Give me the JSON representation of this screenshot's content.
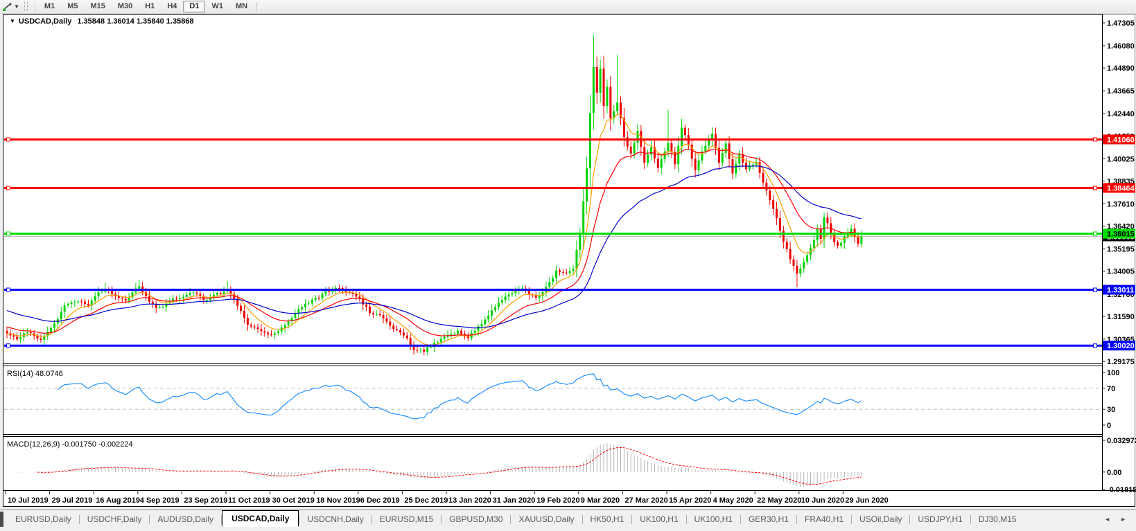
{
  "toolbar": {
    "timeframes": [
      "M1",
      "M5",
      "M15",
      "M30",
      "H1",
      "H4",
      "D1",
      "W1",
      "MN"
    ],
    "active_timeframe": "D1"
  },
  "chart": {
    "title": "USDCAD,Daily",
    "ohlc": "1.35848 1.36014 1.35840 1.35868",
    "background": "#ffffff",
    "bull_color": "#00d300",
    "bear_color": "#ee0000"
  },
  "indicators": {
    "rsi_label": "RSI(14) 48.0746",
    "macd_label": "MACD(12,26,9) -0.001750 -0.002224"
  },
  "axes": {
    "price_ticks": [
      "1.47305",
      "1.46080",
      "1.44890",
      "1.43665",
      "1.42440",
      "1.41250",
      "1.40025",
      "1.38835",
      "1.37610",
      "1.36420",
      "1.35195",
      "1.34005",
      "1.32780",
      "1.31590",
      "1.30365",
      "1.29175"
    ],
    "rsi_ticks": [
      "100",
      "70",
      "30",
      "0"
    ],
    "macd_ticks": [
      "0.032972",
      "0.00",
      "-0.018154"
    ],
    "dates": [
      "10 Jul 2019",
      "29 Jul 2019",
      "16 Aug 2019",
      "4 Sep 2019",
      "23 Sep 2019",
      "11 Oct 2019",
      "30 Oct 2019",
      "18 Nov 2019",
      "6 Dec 2019",
      "25 Dec 2019",
      "13 Jan 2020",
      "31 Jan 2020",
      "19 Feb 2020",
      "9 Mar 2020",
      "27 Mar 2020",
      "15 Apr 2020",
      "4 May 2020",
      "22 May 2020",
      "10 Jun 2020",
      "29 Jun 2020"
    ]
  },
  "levels": [
    {
      "price": 1.4106,
      "label": "1.41060",
      "color": "#ff0000",
      "text_color": "#ffffff",
      "width": 3
    },
    {
      "price": 1.38464,
      "label": "1.38464",
      "color": "#ff0000",
      "text_color": "#ffffff",
      "width": 3
    },
    {
      "price": 1.36015,
      "label": "1.36015",
      "color": "#00dd00",
      "text_color": "#000000",
      "width": 3
    },
    {
      "price": 1.33011,
      "label": "1.33011",
      "color": "#0000ff",
      "text_color": "#ffffff",
      "width": 3
    },
    {
      "price": 1.3002,
      "label": "1.30020",
      "color": "#0000ff",
      "text_color": "#ffffff",
      "width": 3
    }
  ],
  "current_price": {
    "value": 1.35868,
    "label": "1.35868",
    "line_color": "#bdbdbd",
    "bg": "#000000",
    "text_color": "#ffffff"
  },
  "chart_data": {
    "type": "candlestick",
    "symbol": "USDCAD",
    "timeframe": "Daily",
    "title": "USDCAD,Daily 1.35848 1.36014 1.35840 1.35868",
    "x_range": [
      "10 Jul 2019",
      "early Jul 2020"
    ],
    "y_range": [
      1.29175,
      1.47305
    ],
    "high_max": 1.4668,
    "low_min": 1.2952,
    "candles_total": 253,
    "close_anchors": [
      [
        0,
        1.3075
      ],
      [
        3,
        1.3035
      ],
      [
        6,
        1.3075
      ],
      [
        10,
        1.303
      ],
      [
        13,
        1.309
      ],
      [
        17,
        1.321
      ],
      [
        21,
        1.324
      ],
      [
        24,
        1.3215
      ],
      [
        26,
        1.3265
      ],
      [
        29,
        1.331
      ],
      [
        32,
        1.327
      ],
      [
        35,
        1.3245
      ],
      [
        39,
        1.332
      ],
      [
        42,
        1.323
      ],
      [
        45,
        1.32
      ],
      [
        48,
        1.324
      ],
      [
        52,
        1.327
      ],
      [
        55,
        1.329
      ],
      [
        58,
        1.3245
      ],
      [
        61,
        1.327
      ],
      [
        65,
        1.33
      ],
      [
        68,
        1.322
      ],
      [
        71,
        1.312
      ],
      [
        74,
        1.3085
      ],
      [
        78,
        1.3055
      ],
      [
        81,
        1.3095
      ],
      [
        84,
        1.3155
      ],
      [
        87,
        1.321
      ],
      [
        91,
        1.325
      ],
      [
        94,
        1.329
      ],
      [
        97,
        1.331
      ],
      [
        100,
        1.329
      ],
      [
        104,
        1.325
      ],
      [
        107,
        1.318
      ],
      [
        110,
        1.316
      ],
      [
        113,
        1.3105
      ],
      [
        117,
        1.306
      ],
      [
        120,
        1.2985
      ],
      [
        123,
        1.2975
      ],
      [
        126,
        1.301
      ],
      [
        130,
        1.306
      ],
      [
        133,
        1.3075
      ],
      [
        136,
        1.305
      ],
      [
        139,
        1.3105
      ],
      [
        143,
        1.3185
      ],
      [
        146,
        1.325
      ],
      [
        149,
        1.329
      ],
      [
        152,
        1.33
      ],
      [
        156,
        1.3255
      ],
      [
        159,
        1.331
      ],
      [
        162,
        1.34
      ],
      [
        165,
        1.3385
      ],
      [
        167,
        1.342
      ],
      [
        169,
        1.36
      ],
      [
        171,
        1.395
      ],
      [
        172,
        1.425
      ],
      [
        173,
        1.45
      ],
      [
        174,
        1.435
      ],
      [
        175,
        1.448
      ],
      [
        176,
        1.428
      ],
      [
        177,
        1.439
      ],
      [
        178,
        1.422
      ],
      [
        180,
        1.431
      ],
      [
        182,
        1.412
      ],
      [
        184,
        1.403
      ],
      [
        186,
        1.415
      ],
      [
        188,
        1.398
      ],
      [
        190,
        1.406
      ],
      [
        192,
        1.395
      ],
      [
        195,
        1.409
      ],
      [
        197,
        1.398
      ],
      [
        199,
        1.417
      ],
      [
        201,
        1.408
      ],
      [
        203,
        1.394
      ],
      [
        205,
        1.405
      ],
      [
        208,
        1.413
      ],
      [
        210,
        1.398
      ],
      [
        212,
        1.408
      ],
      [
        214,
        1.392
      ],
      [
        216,
        1.402
      ],
      [
        218,
        1.395
      ],
      [
        221,
        1.398
      ],
      [
        223,
        1.387
      ],
      [
        225,
        1.378
      ],
      [
        227,
        1.369
      ],
      [
        229,
        1.356
      ],
      [
        231,
        1.347
      ],
      [
        233,
        1.339
      ],
      [
        234,
        1.342
      ],
      [
        236,
        1.348
      ],
      [
        238,
        1.356
      ],
      [
        239,
        1.362
      ],
      [
        240,
        1.358
      ],
      [
        241,
        1.369
      ],
      [
        242,
        1.366
      ],
      [
        243,
        1.36
      ],
      [
        244,
        1.356
      ],
      [
        245,
        1.353
      ],
      [
        247,
        1.358
      ],
      [
        249,
        1.3625
      ],
      [
        250,
        1.359
      ],
      [
        251,
        1.3555
      ],
      [
        252,
        1.35868
      ]
    ],
    "wick_overrides": [
      {
        "i": 173,
        "type": "high",
        "value": 1.4668
      },
      {
        "i": 180,
        "type": "high",
        "value": 1.456
      },
      {
        "i": 195,
        "type": "high",
        "value": 1.4265
      },
      {
        "i": 208,
        "type": "high",
        "value": 1.4172
      },
      {
        "i": 241,
        "type": "high",
        "value": 1.3715
      },
      {
        "i": 29,
        "type": "high",
        "value": 1.334
      },
      {
        "i": 39,
        "type": "high",
        "value": 1.3355
      },
      {
        "i": 65,
        "type": "high",
        "value": 1.3348
      },
      {
        "i": 120,
        "type": "low",
        "value": 1.2952
      },
      {
        "i": 233,
        "type": "low",
        "value": 1.3315
      }
    ],
    "moving_averages": [
      {
        "name": "ma-fast",
        "period": 8,
        "color": "#ff9c00",
        "start_value": 1.3065
      },
      {
        "name": "ma-mid",
        "period": 20,
        "color": "#ff0000",
        "start_value": 1.3105
      },
      {
        "name": "ma-slow",
        "period": 45,
        "color": "#0000cc",
        "start_value": 1.3195
      }
    ],
    "rsi": {
      "period": 14,
      "current": 48.0746,
      "levels": [
        70,
        30
      ],
      "scale": [
        0,
        100
      ],
      "line_color": "#1e90ff"
    },
    "macd": {
      "fast": 12,
      "slow": 26,
      "signal_period": 9,
      "current_macd": -0.00175,
      "current_signal": -0.002224,
      "scale_max": 0.032972,
      "scale_min": -0.018154,
      "hist_color": "#b4b4b4",
      "signal_color": "#ff0000"
    }
  },
  "tabs": {
    "items": [
      "EURUSD,Daily",
      "USDCHF,Daily",
      "AUDUSD,Daily",
      "USDCAD,Daily",
      "USDCNH,Daily",
      "EURUSD,M15",
      "GBPUSD,M30",
      "XAUUSD,Daily",
      "HK50,H1",
      "UK100,H1",
      "UK100,H1",
      "GER30,H1",
      "FRA40,H1",
      "USOil,Daily",
      "USDJPY,H1",
      "DJ30,M15"
    ],
    "active": "USDCAD,Daily",
    "scroll_left_icon": "left-arrow",
    "scroll_right_icon": "right-arrow"
  }
}
